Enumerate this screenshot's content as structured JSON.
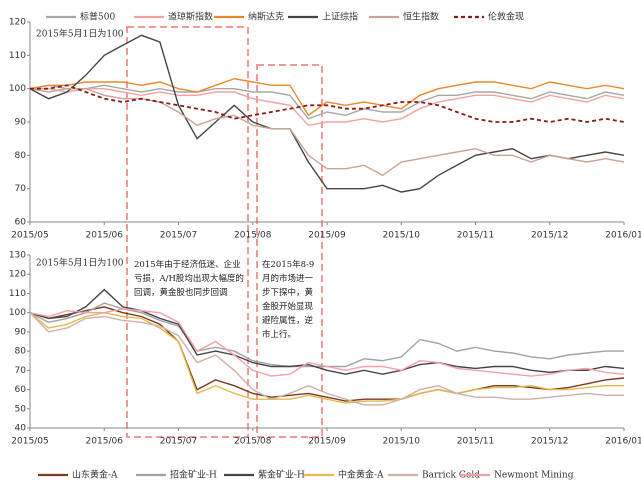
{
  "chart_data": [
    {
      "type": "line",
      "annotation": "2015年5月1日为100",
      "x": [
        0,
        0.25,
        0.5,
        0.75,
        1,
        1.25,
        1.5,
        1.75,
        2,
        2.25,
        2.5,
        2.75,
        3,
        3.25,
        3.5,
        3.75,
        4,
        4.25,
        4.5,
        4.75,
        5,
        5.25,
        5.5,
        5.75,
        6,
        6.25,
        6.5,
        6.75,
        7,
        7.25,
        7.5,
        7.75,
        8
      ],
      "xlim": [
        0,
        8
      ],
      "xticks": [
        {
          "value": 0,
          "label": "2015/05"
        },
        {
          "value": 1,
          "label": "2015/06"
        },
        {
          "value": 2,
          "label": "2015/07"
        },
        {
          "value": 3,
          "label": "2015/08"
        },
        {
          "value": 4,
          "label": "2015/09"
        },
        {
          "value": 5,
          "label": "2015/10"
        },
        {
          "value": 6,
          "label": "2015/11"
        },
        {
          "value": 7,
          "label": "2015/12"
        },
        {
          "value": 8,
          "label": "2016/01"
        }
      ],
      "ylim": [
        60,
        120
      ],
      "yticks": [
        60,
        70,
        80,
        90,
        100,
        110,
        120
      ],
      "legend": "top",
      "series": [
        {
          "name": "标普500",
          "color": "#a8a8a8",
          "values": [
            100,
            101,
            100,
            100,
            101,
            100,
            99,
            100,
            99,
            99,
            100,
            100,
            99,
            99,
            98,
            91,
            93,
            92,
            94,
            93,
            93,
            96,
            98,
            98,
            99,
            99,
            98,
            97,
            99,
            98,
            97,
            99,
            98
          ]
        },
        {
          "name": "道琼斯指数",
          "color": "#f3a2a2",
          "values": [
            100,
            100,
            99,
            100,
            100,
            99,
            98,
            99,
            98,
            98,
            99,
            99,
            97,
            96,
            95,
            89,
            90,
            90,
            91,
            90,
            91,
            94,
            96,
            97,
            98,
            98,
            97,
            96,
            98,
            97,
            96,
            98,
            97
          ]
        },
        {
          "name": "纳斯达克",
          "color": "#e8892c",
          "values": [
            100,
            101,
            101,
            102,
            102,
            102,
            101,
            102,
            100,
            99,
            101,
            103,
            102,
            101,
            101,
            92,
            96,
            95,
            96,
            95,
            94,
            98,
            100,
            101,
            102,
            102,
            101,
            100,
            102,
            101,
            100,
            101,
            100
          ]
        },
        {
          "name": "上证综指",
          "color": "#444444",
          "values": [
            100,
            97,
            99,
            104,
            110,
            113,
            116,
            114,
            95,
            85,
            90,
            95,
            90,
            88,
            88,
            78,
            70,
            70,
            70,
            71,
            69,
            70,
            74,
            77,
            80,
            81,
            82,
            79,
            80,
            79,
            80,
            81,
            80
          ]
        },
        {
          "name": "恒生指数",
          "color": "#c9a393",
          "values": [
            100,
            99,
            100,
            100,
            98,
            97,
            97,
            96,
            93,
            89,
            91,
            92,
            89,
            88,
            88,
            80,
            76,
            76,
            77,
            74,
            78,
            79,
            80,
            81,
            82,
            80,
            80,
            78,
            80,
            79,
            78,
            79,
            78
          ]
        },
        {
          "name": "伦敦金现",
          "color": "#8b1a1a",
          "style": "dashed",
          "values": [
            100,
            100,
            101,
            99,
            97,
            96,
            97,
            96,
            95,
            94,
            93,
            91,
            92,
            93,
            94,
            95,
            95,
            94,
            94,
            95,
            96,
            96,
            95,
            93,
            91,
            90,
            90,
            91,
            90,
            91,
            90,
            91,
            90
          ]
        }
      ]
    },
    {
      "type": "line",
      "annotation": "2015年5月1日为100",
      "x": [
        0,
        0.25,
        0.5,
        0.75,
        1,
        1.25,
        1.5,
        1.75,
        2,
        2.25,
        2.5,
        2.75,
        3,
        3.25,
        3.5,
        3.75,
        4,
        4.25,
        4.5,
        4.75,
        5,
        5.25,
        5.5,
        5.75,
        6,
        6.25,
        6.5,
        6.75,
        7,
        7.25,
        7.5,
        7.75,
        8
      ],
      "xlim": [
        0,
        8
      ],
      "xticks": [
        {
          "value": 0,
          "label": "2015/05"
        },
        {
          "value": 1,
          "label": "2015/06"
        },
        {
          "value": 2,
          "label": "2015/07"
        },
        {
          "value": 3,
          "label": "2015/08"
        },
        {
          "value": 4,
          "label": "2015/09"
        },
        {
          "value": 5,
          "label": "2015/10"
        },
        {
          "value": 6,
          "label": "2015/11"
        },
        {
          "value": 7,
          "label": "2015/12"
        },
        {
          "value": 8,
          "label": "2016/01"
        }
      ],
      "ylim": [
        40,
        130
      ],
      "yticks": [
        40,
        50,
        60,
        70,
        80,
        90,
        100,
        110,
        120,
        130
      ],
      "legend": "bottom",
      "series": [
        {
          "name": "山东黄金-A",
          "color": "#7a3b1f",
          "values": [
            100,
            97,
            99,
            101,
            103,
            100,
            98,
            94,
            85,
            60,
            65,
            62,
            58,
            56,
            57,
            58,
            56,
            54,
            55,
            55,
            55,
            58,
            60,
            58,
            60,
            62,
            62,
            61,
            60,
            61,
            63,
            65,
            66
          ]
        },
        {
          "name": "招金矿业-H",
          "color": "#a2a2a2",
          "values": [
            100,
            95,
            97,
            100,
            105,
            102,
            100,
            96,
            93,
            80,
            82,
            80,
            75,
            73,
            72,
            72,
            72,
            72,
            76,
            75,
            77,
            86,
            84,
            80,
            82,
            80,
            79,
            77,
            76,
            78,
            79,
            80,
            80
          ]
        },
        {
          "name": "紫金矿业-H",
          "color": "#444444",
          "values": [
            100,
            97,
            98,
            103,
            112,
            103,
            101,
            97,
            94,
            78,
            80,
            78,
            74,
            72,
            72,
            73,
            70,
            68,
            70,
            68,
            70,
            73,
            74,
            72,
            71,
            72,
            72,
            70,
            69,
            70,
            70,
            72,
            71
          ]
        },
        {
          "name": "中金黄金-A",
          "color": "#e8b84a",
          "values": [
            100,
            92,
            94,
            98,
            100,
            98,
            97,
            92,
            85,
            58,
            62,
            58,
            55,
            55,
            55,
            57,
            55,
            53,
            54,
            54,
            55,
            58,
            60,
            58,
            60,
            61,
            61,
            62,
            60,
            60,
            61,
            62,
            62
          ]
        },
        {
          "name": "Barrick Gold",
          "color": "#cdb0a8",
          "values": [
            100,
            90,
            92,
            97,
            98,
            96,
            95,
            93,
            88,
            74,
            78,
            70,
            60,
            55,
            58,
            62,
            58,
            55,
            52,
            52,
            55,
            60,
            62,
            58,
            56,
            56,
            55,
            55,
            56,
            57,
            58,
            57,
            57
          ]
        },
        {
          "name": "Newmont Mining",
          "color": "#f4a0a8",
          "values": [
            100,
            98,
            101,
            100,
            100,
            102,
            101,
            100,
            95,
            80,
            85,
            78,
            70,
            67,
            68,
            74,
            72,
            70,
            72,
            72,
            70,
            75,
            74,
            71,
            70,
            69,
            68,
            67,
            68,
            70,
            71,
            69,
            68
          ]
        }
      ]
    }
  ],
  "annotations": [
    "2015年由于经济低迷、企业亏损，A/H股均出现大幅度的回调，黄金股也同步回调",
    "在2015年8-9月的市场进一步下探中，黄金股开始显现避险属性，逆市上行。"
  ]
}
